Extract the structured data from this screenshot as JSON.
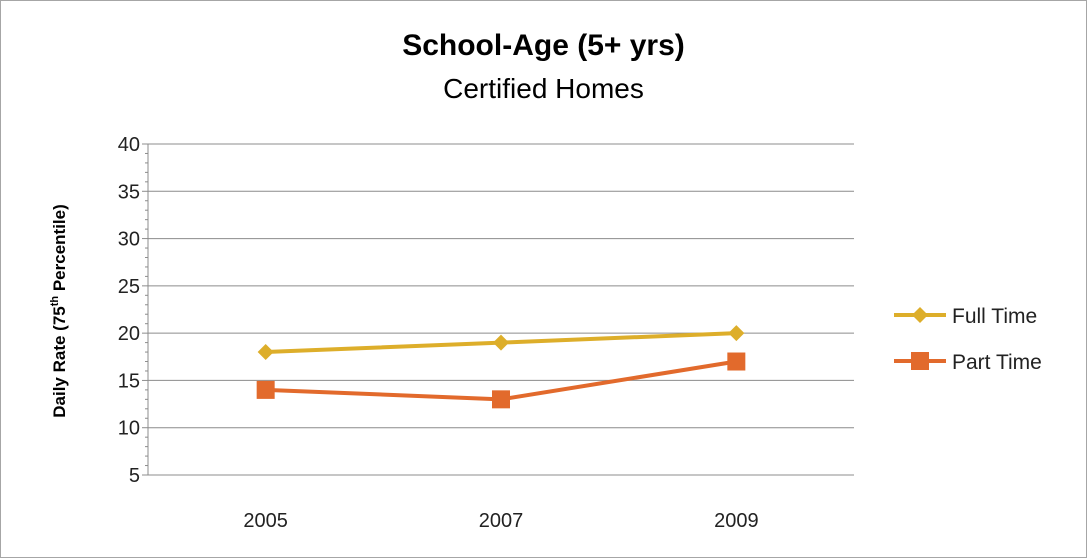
{
  "chart_data": {
    "type": "line",
    "title": "School-Age (5+ yrs)",
    "subtitle": "Certified Homes",
    "ylabel_pre": "Daily Rate (75",
    "ylabel_sup": "th",
    "ylabel_post": " Percentile)",
    "xlabel": "",
    "categories": [
      "2005",
      "2007",
      "2009"
    ],
    "ylim": [
      5,
      40
    ],
    "yticks": [
      5,
      10,
      15,
      20,
      25,
      30,
      35,
      40
    ],
    "grid": true,
    "legend": "right",
    "series": [
      {
        "name": "Full Time",
        "values": [
          18,
          19,
          20
        ],
        "color": "#DDAE2A",
        "marker": "diamond"
      },
      {
        "name": "Part Time",
        "values": [
          14,
          13,
          17
        ],
        "color": "#E26A2C",
        "marker": "square"
      }
    ]
  }
}
